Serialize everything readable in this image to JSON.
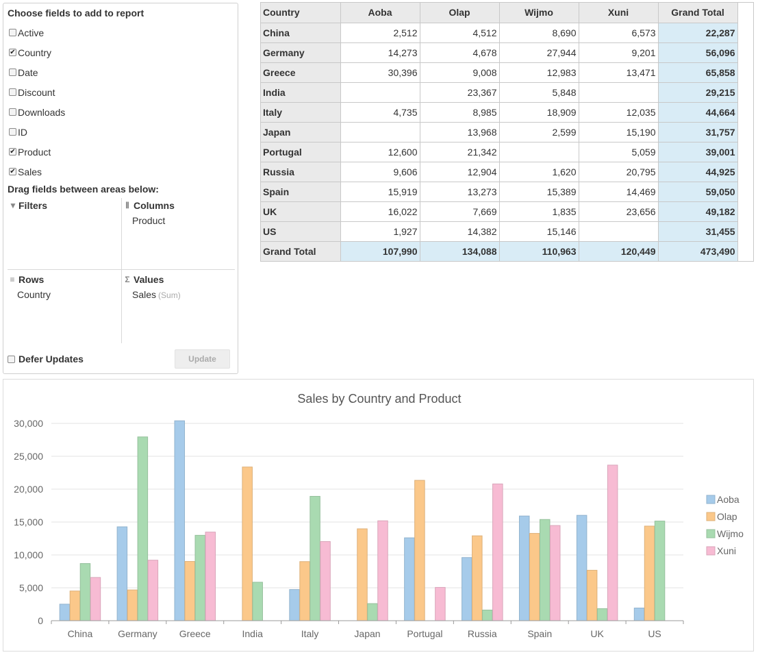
{
  "field_panel": {
    "title": "Choose fields to add to report",
    "fields": [
      {
        "label": "Active",
        "checked": false
      },
      {
        "label": "Country",
        "checked": true
      },
      {
        "label": "Date",
        "checked": false
      },
      {
        "label": "Discount",
        "checked": false
      },
      {
        "label": "Downloads",
        "checked": false
      },
      {
        "label": "ID",
        "checked": false
      },
      {
        "label": "Product",
        "checked": true
      },
      {
        "label": "Sales",
        "checked": true
      }
    ],
    "drag_title": "Drag fields between areas below:",
    "areas": {
      "filters": {
        "label": "Filters",
        "items": []
      },
      "columns": {
        "label": "Columns",
        "items": [
          "Product"
        ]
      },
      "rows": {
        "label": "Rows",
        "items": [
          "Country"
        ]
      },
      "values": {
        "label": "Values",
        "items": [
          {
            "name": "Sales",
            "agg": "(Sum)"
          }
        ]
      }
    },
    "defer_label": "Defer Updates",
    "update_label": "Update"
  },
  "pivot": {
    "corner": "Country",
    "columns": [
      "Aoba",
      "Olap",
      "Wijmo",
      "Xuni",
      "Grand Total"
    ],
    "rows": [
      {
        "country": "China",
        "values": [
          "2,512",
          "4,512",
          "8,690",
          "6,573"
        ],
        "total": "22,287"
      },
      {
        "country": "Germany",
        "values": [
          "14,273",
          "4,678",
          "27,944",
          "9,201"
        ],
        "total": "56,096"
      },
      {
        "country": "Greece",
        "values": [
          "30,396",
          "9,008",
          "12,983",
          "13,471"
        ],
        "total": "65,858"
      },
      {
        "country": "India",
        "values": [
          "",
          "23,367",
          "5,848",
          ""
        ],
        "total": "29,215"
      },
      {
        "country": "Italy",
        "values": [
          "4,735",
          "8,985",
          "18,909",
          "12,035"
        ],
        "total": "44,664"
      },
      {
        "country": "Japan",
        "values": [
          "",
          "13,968",
          "2,599",
          "15,190"
        ],
        "total": "31,757"
      },
      {
        "country": "Portugal",
        "values": [
          "12,600",
          "21,342",
          "",
          "5,059"
        ],
        "total": "39,001"
      },
      {
        "country": "Russia",
        "values": [
          "9,606",
          "12,904",
          "1,620",
          "20,795"
        ],
        "total": "44,925"
      },
      {
        "country": "Spain",
        "values": [
          "15,919",
          "13,273",
          "15,389",
          "14,469"
        ],
        "total": "59,050"
      },
      {
        "country": "UK",
        "values": [
          "16,022",
          "7,669",
          "1,835",
          "23,656"
        ],
        "total": "49,182"
      },
      {
        "country": "US",
        "values": [
          "1,927",
          "14,382",
          "15,146",
          ""
        ],
        "total": "31,455"
      }
    ],
    "grand_total": {
      "label": "Grand Total",
      "values": [
        "107,990",
        "134,088",
        "110,963",
        "120,449"
      ],
      "total": "473,490"
    }
  },
  "chart_data": {
    "type": "bar",
    "title": "Sales by Country and Product",
    "xlabel": "",
    "ylabel": "",
    "categories": [
      "China",
      "Germany",
      "Greece",
      "India",
      "Italy",
      "Japan",
      "Portugal",
      "Russia",
      "Spain",
      "UK",
      "US"
    ],
    "series": [
      {
        "name": "Aoba",
        "color": "#a6cbea",
        "values": [
          2512,
          14273,
          30396,
          null,
          4735,
          null,
          12600,
          9606,
          15919,
          16022,
          1927
        ]
      },
      {
        "name": "Olap",
        "color": "#fbc88a",
        "values": [
          4512,
          4678,
          9008,
          23367,
          8985,
          13968,
          21342,
          12904,
          13273,
          7669,
          14382
        ]
      },
      {
        "name": "Wijmo",
        "color": "#a9dab1",
        "values": [
          8690,
          27944,
          12983,
          5848,
          18909,
          2599,
          null,
          1620,
          15389,
          1835,
          15146
        ]
      },
      {
        "name": "Xuni",
        "color": "#f7bbd3",
        "values": [
          6573,
          9201,
          13471,
          null,
          12035,
          15190,
          5059,
          20795,
          14469,
          23656,
          null
        ]
      }
    ],
    "ylim": [
      0,
      30000
    ],
    "yticks": [
      "0",
      "5,000",
      "10,000",
      "15,000",
      "20,000",
      "25,000",
      "30,000"
    ],
    "ytick_values": [
      0,
      5000,
      10000,
      15000,
      20000,
      25000,
      30000
    ],
    "grid": true,
    "legend_position": "right"
  }
}
